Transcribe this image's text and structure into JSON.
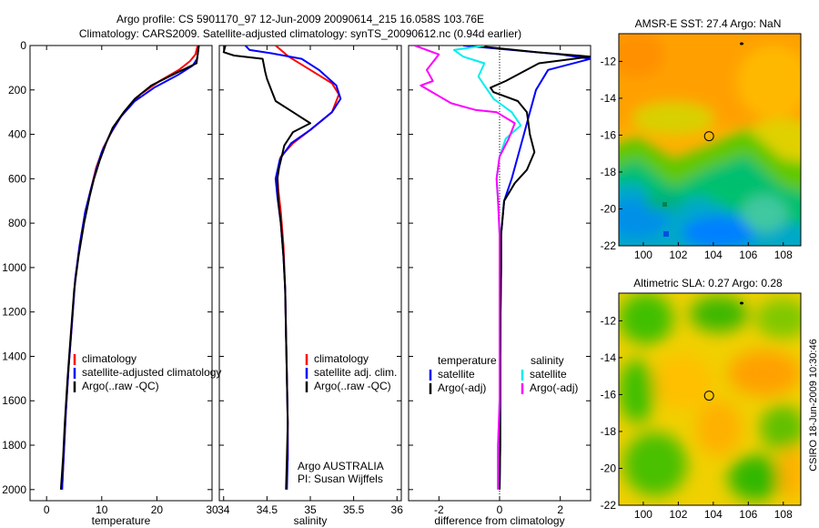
{
  "header": {
    "line1": "Argo profile: CS 5901170_97 12-Jun-2009 20090614_215 16.058S 103.76E",
    "line2": "Climatology: CARS2009. Satellite-adjusted climatology: synTS_20090612.nc (0.94d earlier)"
  },
  "footer_vertical": "CSIRO 18-Jun-2009 10:30:46",
  "colors": {
    "clim": "#ff0000",
    "sat": "#0000ff",
    "argo": "#000000",
    "sal_sat": "#00eeee",
    "sal_argo": "#ff00ff",
    "frame": "#000000"
  },
  "chart_data": [
    {
      "type": "line",
      "xlabel": "temperature",
      "ylabel": "",
      "xlim": [
        -3,
        30
      ],
      "ylim": [
        0,
        2050
      ],
      "y_reversed": true,
      "xticks": [
        0,
        10,
        20,
        30
      ],
      "yticks": [
        0,
        200,
        400,
        600,
        800,
        1000,
        1200,
        1400,
        1600,
        1800,
        2000
      ],
      "legend": [
        "climatology",
        "satellite-adjusted climatology",
        "Argo(..raw -QC)"
      ],
      "series": [
        {
          "name": "climatology",
          "color": "#ff0000",
          "points": [
            [
              27.4,
              0
            ],
            [
              27.0,
              40
            ],
            [
              26.0,
              70
            ],
            [
              24.0,
              110
            ],
            [
              20.5,
              160
            ],
            [
              17.0,
              220
            ],
            [
              14.0,
              300
            ],
            [
              12.0,
              380
            ],
            [
              10.3,
              460
            ],
            [
              9.0,
              550
            ],
            [
              8.0,
              650
            ],
            [
              7.0,
              750
            ],
            [
              6.0,
              900
            ],
            [
              5.2,
              1050
            ],
            [
              4.6,
              1250
            ],
            [
              4.0,
              1450
            ],
            [
              3.5,
              1650
            ],
            [
              3.1,
              1850
            ],
            [
              2.8,
              2000
            ]
          ]
        },
        {
          "name": "satellite-adjusted climatology",
          "color": "#0000ff",
          "points": [
            [
              27.6,
              0
            ],
            [
              27.3,
              60
            ],
            [
              26.5,
              90
            ],
            [
              24.0,
              130
            ],
            [
              19.5,
              190
            ],
            [
              16.0,
              250
            ],
            [
              13.5,
              320
            ],
            [
              11.5,
              400
            ],
            [
              10.0,
              480
            ],
            [
              9.0,
              560
            ],
            [
              8.0,
              650
            ],
            [
              7.0,
              750
            ],
            [
              6.0,
              900
            ],
            [
              5.2,
              1050
            ],
            [
              4.6,
              1250
            ],
            [
              4.0,
              1450
            ],
            [
              3.5,
              1650
            ],
            [
              3.1,
              1850
            ],
            [
              2.8,
              2000
            ]
          ]
        },
        {
          "name": "Argo(..raw -QC)",
          "color": "#000000",
          "points": [
            [
              27.6,
              0
            ],
            [
              27.2,
              80
            ],
            [
              23.0,
              130
            ],
            [
              19.0,
              180
            ],
            [
              16.0,
              240
            ],
            [
              14.0,
              300
            ],
            [
              12.0,
              370
            ],
            [
              10.8,
              440
            ],
            [
              9.6,
              520
            ],
            [
              8.6,
              600
            ],
            [
              7.8,
              680
            ],
            [
              6.8,
              800
            ],
            [
              5.8,
              950
            ],
            [
              5.0,
              1100
            ],
            [
              4.4,
              1300
            ],
            [
              3.8,
              1500
            ],
            [
              3.3,
              1700
            ],
            [
              3.0,
              1850
            ],
            [
              2.6,
              2000
            ]
          ]
        }
      ]
    },
    {
      "type": "line",
      "xlabel": "salinity",
      "ylabel": "",
      "xlim": [
        33.95,
        36.05
      ],
      "ylim": [
        0,
        2050
      ],
      "y_reversed": true,
      "xticks": [
        34,
        34.5,
        35,
        35.5,
        36
      ],
      "legend": [
        "climatology",
        "satellite adj. clim.",
        "Argo(..raw -QC)"
      ],
      "annotation": [
        "Argo AUSTRALIA",
        "PI: Susan Wijffels"
      ],
      "series": [
        {
          "name": "climatology",
          "color": "#ff0000",
          "points": [
            [
              34.6,
              0
            ],
            [
              34.75,
              50
            ],
            [
              35.0,
              110
            ],
            [
              35.25,
              170
            ],
            [
              35.33,
              220
            ],
            [
              35.25,
              300
            ],
            [
              35.0,
              380
            ],
            [
              34.8,
              440
            ],
            [
              34.66,
              500
            ],
            [
              34.62,
              580
            ],
            [
              34.63,
              650
            ],
            [
              34.66,
              750
            ],
            [
              34.69,
              900
            ],
            [
              34.71,
              1100
            ],
            [
              34.72,
              1300
            ],
            [
              34.73,
              1500
            ],
            [
              34.74,
              1700
            ],
            [
              34.74,
              1850
            ],
            [
              34.74,
              1870
            ]
          ]
        },
        {
          "name": "satellite adj. clim.",
          "color": "#0000ff",
          "points": [
            [
              34.25,
              0
            ],
            [
              34.3,
              20
            ],
            [
              34.55,
              35
            ],
            [
              34.9,
              60
            ],
            [
              35.1,
              110
            ],
            [
              35.3,
              180
            ],
            [
              35.35,
              240
            ],
            [
              35.25,
              300
            ],
            [
              35.0,
              380
            ],
            [
              34.78,
              440
            ],
            [
              34.65,
              510
            ],
            [
              34.6,
              600
            ],
            [
              34.62,
              680
            ],
            [
              34.66,
              800
            ],
            [
              34.69,
              950
            ],
            [
              34.71,
              1100
            ],
            [
              34.72,
              1300
            ],
            [
              34.73,
              1500
            ],
            [
              34.74,
              1700
            ],
            [
              34.74,
              1850
            ],
            [
              34.73,
              2000
            ]
          ]
        },
        {
          "name": "Argo(..raw -QC)",
          "color": "#000000",
          "points": [
            [
              34.02,
              0
            ],
            [
              34.0,
              30
            ],
            [
              34.12,
              45
            ],
            [
              34.45,
              60
            ],
            [
              34.48,
              120
            ],
            [
              34.5,
              150
            ],
            [
              34.55,
              200
            ],
            [
              34.6,
              250
            ],
            [
              34.8,
              300
            ],
            [
              35.0,
              350
            ],
            [
              34.8,
              390
            ],
            [
              34.7,
              450
            ],
            [
              34.67,
              500
            ],
            [
              34.64,
              550
            ],
            [
              34.62,
              600
            ],
            [
              34.63,
              700
            ],
            [
              34.66,
              800
            ],
            [
              34.69,
              950
            ],
            [
              34.71,
              1100
            ],
            [
              34.72,
              1300
            ],
            [
              34.73,
              1500
            ],
            [
              34.74,
              1700
            ],
            [
              34.73,
              1850
            ],
            [
              34.72,
              2000
            ]
          ]
        }
      ]
    },
    {
      "type": "line",
      "xlabel": "difference from climatology",
      "ylabel": "",
      "xlim": [
        -3,
        3
      ],
      "ylim": [
        0,
        2050
      ],
      "y_reversed": true,
      "xticks": [
        -2,
        0,
        2
      ],
      "legend_left_title": "temperature",
      "legend_right_title": "salinity",
      "legend_left": [
        "satellite",
        "Argo(-adj)"
      ],
      "legend_right": [
        "satellite",
        "Argo(-adj)"
      ],
      "series": [
        {
          "name": "satellite",
          "group": "temperature",
          "color": "#0000ff",
          "points": [
            [
              -1.2,
              0
            ],
            [
              2.0,
              40
            ],
            [
              3.0,
              60
            ],
            [
              1.6,
              110
            ],
            [
              1.2,
              200
            ],
            [
              1.0,
              300
            ],
            [
              0.8,
              400
            ],
            [
              0.6,
              500
            ],
            [
              0.4,
              600
            ],
            [
              0.15,
              700
            ],
            [
              0.05,
              850
            ],
            [
              0.05,
              1000
            ],
            [
              0.03,
              1200
            ],
            [
              0.02,
              1400
            ],
            [
              0.02,
              1600
            ],
            [
              0.02,
              1800
            ],
            [
              0.0,
              2000
            ]
          ]
        },
        {
          "name": "Argo(-adj)",
          "group": "temperature",
          "color": "#000000",
          "points": [
            [
              -0.9,
              0
            ],
            [
              1.2,
              30
            ],
            [
              3.0,
              50
            ],
            [
              1.3,
              80
            ],
            [
              0.2,
              160
            ],
            [
              -0.3,
              190
            ],
            [
              -0.2,
              210
            ],
            [
              0.6,
              250
            ],
            [
              0.9,
              300
            ],
            [
              1.0,
              400
            ],
            [
              1.15,
              480
            ],
            [
              0.9,
              560
            ],
            [
              0.5,
              620
            ],
            [
              0.15,
              700
            ],
            [
              0.05,
              850
            ],
            [
              0.05,
              1000
            ],
            [
              0.03,
              1200
            ],
            [
              0.02,
              1400
            ],
            [
              0.02,
              1600
            ],
            [
              0.02,
              1800
            ],
            [
              0.0,
              2000
            ]
          ]
        },
        {
          "name": "satellite",
          "group": "salinity",
          "color": "#00eeee",
          "points": [
            [
              -0.5,
              0
            ],
            [
              -1.5,
              20
            ],
            [
              -1.2,
              50
            ],
            [
              -0.5,
              80
            ],
            [
              -0.7,
              140
            ],
            [
              -0.2,
              240
            ],
            [
              0.4,
              300
            ],
            [
              0.7,
              360
            ],
            [
              0.2,
              420
            ],
            [
              0.0,
              500
            ],
            [
              -0.1,
              600
            ],
            [
              -0.05,
              700
            ],
            [
              0.0,
              850
            ],
            [
              0.0,
              1000
            ],
            [
              0.0,
              1200
            ],
            [
              0.0,
              1400
            ],
            [
              0.0,
              1600
            ],
            [
              -0.05,
              1800
            ],
            [
              -0.05,
              2000
            ]
          ]
        },
        {
          "name": "Argo(-adj)",
          "group": "salinity",
          "color": "#ff00ff",
          "points": [
            [
              -2.8,
              0
            ],
            [
              -2.0,
              40
            ],
            [
              -2.4,
              110
            ],
            [
              -2.2,
              160
            ],
            [
              -2.6,
              180
            ],
            [
              -1.6,
              260
            ],
            [
              -0.8,
              290
            ],
            [
              -0.1,
              300
            ],
            [
              0.5,
              350
            ],
            [
              0.3,
              420
            ],
            [
              0.0,
              500
            ],
            [
              -0.1,
              600
            ],
            [
              -0.05,
              700
            ],
            [
              0.0,
              850
            ],
            [
              0.0,
              1000
            ],
            [
              0.0,
              1200
            ],
            [
              0.0,
              1400
            ],
            [
              0.0,
              1600
            ],
            [
              -0.05,
              1800
            ],
            [
              -0.05,
              2000
            ]
          ]
        }
      ]
    },
    {
      "type": "heatmap",
      "title": "AMSR-E SST: 27.4 Argo: NaN",
      "xlim": [
        98.6,
        109.0
      ],
      "ylim": [
        -22,
        -10.5
      ],
      "xticks": [
        100,
        102,
        104,
        106,
        108
      ],
      "yticks": [
        -12,
        -14,
        -16,
        -18,
        -20,
        -22
      ],
      "profile_location": [
        103.76,
        -16.058
      ],
      "colormap": "blue-cyan-green-yellow-orange"
    },
    {
      "type": "heatmap",
      "title": "Altimetric SLA: 0.27 Argo: 0.28",
      "xlim": [
        98.6,
        109.0
      ],
      "ylim": [
        -22,
        -10.5
      ],
      "xticks": [
        100,
        102,
        104,
        106,
        108
      ],
      "yticks": [
        -12,
        -14,
        -16,
        -18,
        -20,
        -22
      ],
      "profile_location": [
        103.76,
        -16.058
      ],
      "colormap": "green-yellow-orange"
    }
  ]
}
